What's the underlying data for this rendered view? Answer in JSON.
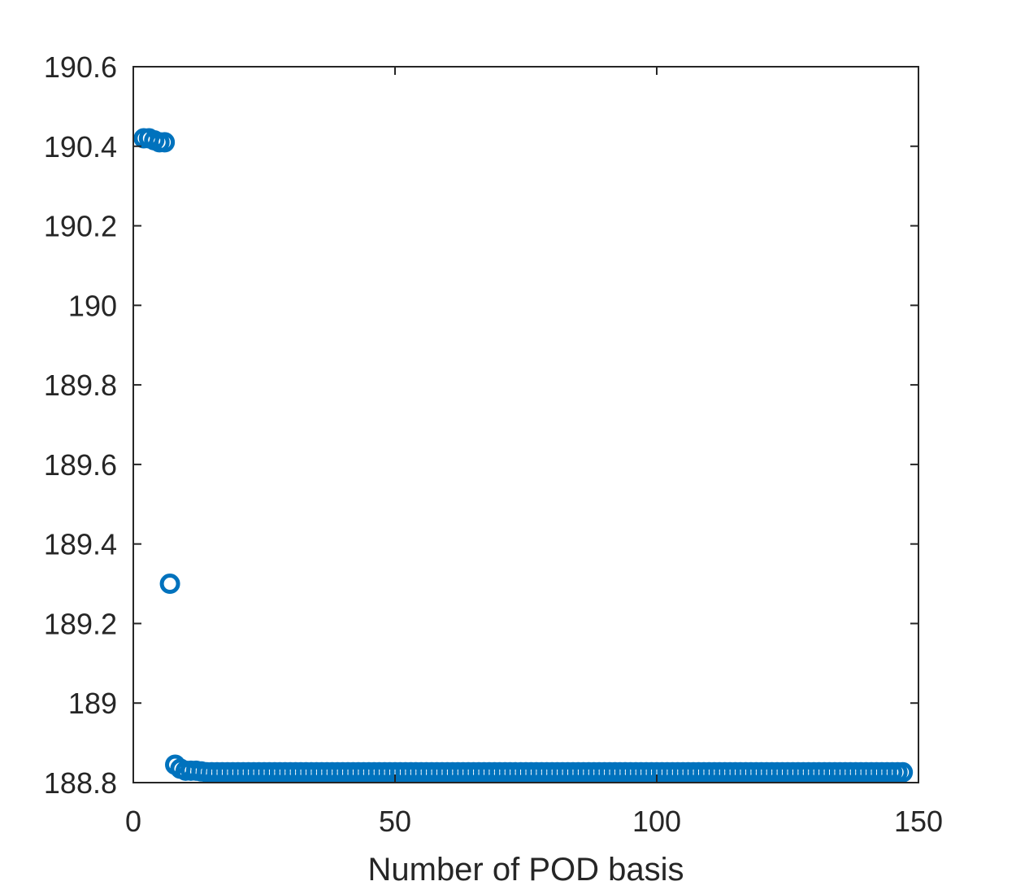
{
  "chart_data": {
    "type": "scatter",
    "title": "",
    "xlabel": "Number of POD basis",
    "ylabel": "",
    "xlim": [
      0,
      150
    ],
    "ylim": [
      188.8,
      190.6
    ],
    "xticks": [
      0,
      50,
      100,
      150
    ],
    "xtick_labels": [
      "0",
      "50",
      "100",
      "150"
    ],
    "yticks": [
      188.8,
      189,
      189.2,
      189.4,
      189.6,
      189.8,
      190,
      190.2,
      190.4,
      190.6
    ],
    "ytick_labels": [
      "188.8",
      "189",
      "189.2",
      "189.4",
      "189.6",
      "189.8",
      "190",
      "190.2",
      "190.4",
      "190.6"
    ],
    "grid": false,
    "marker": "open-circle",
    "color": "#0072BD",
    "series": [
      {
        "x": [
          2,
          3,
          4,
          5,
          6,
          7,
          8,
          9,
          10,
          11,
          12,
          13,
          14,
          15,
          16,
          17,
          18,
          19,
          20,
          21,
          22,
          23,
          24,
          25,
          26,
          27,
          28,
          29,
          30,
          31,
          32,
          33,
          34,
          35,
          36,
          37,
          38,
          39,
          40,
          41,
          42,
          43,
          44,
          45,
          46,
          47,
          48,
          49,
          50,
          51,
          52,
          53,
          54,
          55,
          56,
          57,
          58,
          59,
          60,
          61,
          62,
          63,
          64,
          65,
          66,
          67,
          68,
          69,
          70,
          71,
          72,
          73,
          74,
          75,
          76,
          77,
          78,
          79,
          80,
          81,
          82,
          83,
          84,
          85,
          86,
          87,
          88,
          89,
          90,
          91,
          92,
          93,
          94,
          95,
          96,
          97,
          98,
          99,
          100,
          101,
          102,
          103,
          104,
          105,
          106,
          107,
          108,
          109,
          110,
          111,
          112,
          113,
          114,
          115,
          116,
          117,
          118,
          119,
          120,
          121,
          122,
          123,
          124,
          125,
          126,
          127,
          128,
          129,
          130,
          131,
          132,
          133,
          134,
          135,
          136,
          137,
          138,
          139,
          140,
          141,
          142,
          143,
          144,
          145,
          146,
          147
        ],
        "y": [
          190.42,
          190.42,
          190.415,
          190.41,
          190.41,
          189.3,
          188.845,
          188.835,
          188.83,
          188.83,
          188.83,
          188.828,
          188.826,
          188.826,
          188.826,
          188.826,
          188.826,
          188.826,
          188.826,
          188.826,
          188.826,
          188.826,
          188.826,
          188.826,
          188.826,
          188.826,
          188.826,
          188.826,
          188.826,
          188.826,
          188.826,
          188.826,
          188.826,
          188.826,
          188.826,
          188.826,
          188.826,
          188.826,
          188.826,
          188.826,
          188.826,
          188.826,
          188.826,
          188.826,
          188.826,
          188.826,
          188.826,
          188.826,
          188.826,
          188.826,
          188.826,
          188.826,
          188.826,
          188.826,
          188.826,
          188.826,
          188.826,
          188.826,
          188.826,
          188.826,
          188.826,
          188.826,
          188.826,
          188.826,
          188.826,
          188.826,
          188.826,
          188.826,
          188.826,
          188.826,
          188.826,
          188.826,
          188.826,
          188.826,
          188.826,
          188.826,
          188.826,
          188.826,
          188.826,
          188.826,
          188.826,
          188.826,
          188.826,
          188.826,
          188.826,
          188.826,
          188.826,
          188.826,
          188.826,
          188.826,
          188.826,
          188.826,
          188.826,
          188.826,
          188.826,
          188.826,
          188.826,
          188.826,
          188.826,
          188.826,
          188.826,
          188.826,
          188.826,
          188.826,
          188.826,
          188.826,
          188.826,
          188.826,
          188.826,
          188.826,
          188.826,
          188.826,
          188.826,
          188.826,
          188.826,
          188.826,
          188.826,
          188.826,
          188.826,
          188.826,
          188.826,
          188.826,
          188.826,
          188.826,
          188.826,
          188.826,
          188.826,
          188.826,
          188.826,
          188.826,
          188.826,
          188.826,
          188.826,
          188.826,
          188.826,
          188.826,
          188.826,
          188.826,
          188.826,
          188.826,
          188.826,
          188.826,
          188.826,
          188.826,
          188.826,
          188.826
        ]
      }
    ]
  }
}
